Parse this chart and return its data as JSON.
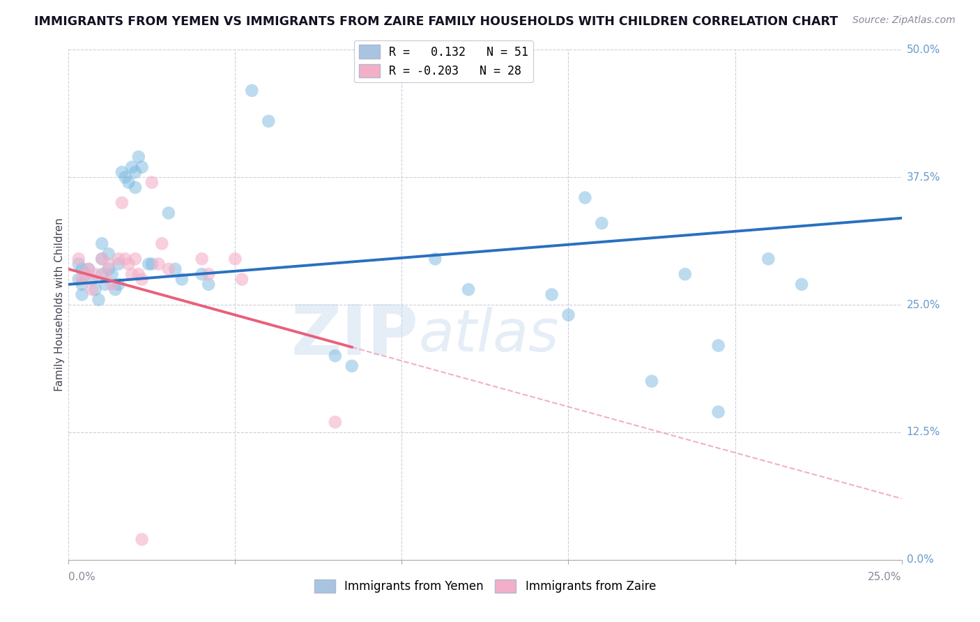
{
  "title": "IMMIGRANTS FROM YEMEN VS IMMIGRANTS FROM ZAIRE FAMILY HOUSEHOLDS WITH CHILDREN CORRELATION CHART",
  "source": "Source: ZipAtlas.com",
  "ylabel": "Family Households with Children",
  "ylabel_ticks": [
    "0.0%",
    "12.5%",
    "25.0%",
    "37.5%",
    "50.0%"
  ],
  "xlim": [
    0.0,
    0.25
  ],
  "ylim": [
    0.0,
    0.5
  ],
  "legend1_label": "R =   0.132   N = 51",
  "legend2_label": "R = -0.203   N = 28",
  "legend1_color": "#a8c4e0",
  "legend2_color": "#f4afc8",
  "watermark_zip": "ZIP",
  "watermark_atlas": "atlas",
  "yemen_color": "#7ab8e0",
  "zaire_color": "#f4afc8",
  "yemen_line_color": "#2970c0",
  "zaire_line_color": "#e8607a",
  "zaire_ext_line_color": "#f0b0c8",
  "background_color": "#ffffff",
  "grid_color": "#c8c8d8",
  "yemen_x": [
    0.003,
    0.003,
    0.004,
    0.004,
    0.004,
    0.005,
    0.006,
    0.007,
    0.008,
    0.009,
    0.01,
    0.01,
    0.01,
    0.011,
    0.012,
    0.012,
    0.013,
    0.014,
    0.015,
    0.015,
    0.016,
    0.017,
    0.018,
    0.019,
    0.02,
    0.02,
    0.021,
    0.022,
    0.024,
    0.025,
    0.03,
    0.032,
    0.034,
    0.04,
    0.042,
    0.055,
    0.06,
    0.08,
    0.085,
    0.11,
    0.12,
    0.155,
    0.16,
    0.185,
    0.195,
    0.21,
    0.22,
    0.145,
    0.15,
    0.175,
    0.195
  ],
  "yemen_y": [
    0.29,
    0.275,
    0.285,
    0.27,
    0.26,
    0.28,
    0.285,
    0.275,
    0.265,
    0.255,
    0.295,
    0.31,
    0.28,
    0.27,
    0.3,
    0.285,
    0.28,
    0.265,
    0.29,
    0.27,
    0.38,
    0.375,
    0.37,
    0.385,
    0.38,
    0.365,
    0.395,
    0.385,
    0.29,
    0.29,
    0.34,
    0.285,
    0.275,
    0.28,
    0.27,
    0.46,
    0.43,
    0.2,
    0.19,
    0.295,
    0.265,
    0.355,
    0.33,
    0.28,
    0.21,
    0.295,
    0.27,
    0.26,
    0.24,
    0.175,
    0.145
  ],
  "zaire_x": [
    0.003,
    0.004,
    0.005,
    0.006,
    0.007,
    0.008,
    0.01,
    0.011,
    0.012,
    0.013,
    0.015,
    0.016,
    0.017,
    0.018,
    0.019,
    0.02,
    0.021,
    0.022,
    0.025,
    0.027,
    0.028,
    0.03,
    0.04,
    0.042,
    0.05,
    0.052,
    0.08,
    0.022
  ],
  "zaire_y": [
    0.295,
    0.275,
    0.28,
    0.285,
    0.265,
    0.28,
    0.295,
    0.28,
    0.29,
    0.27,
    0.295,
    0.35,
    0.295,
    0.29,
    0.28,
    0.295,
    0.28,
    0.275,
    0.37,
    0.29,
    0.31,
    0.285,
    0.295,
    0.28,
    0.295,
    0.275,
    0.135,
    0.02
  ]
}
